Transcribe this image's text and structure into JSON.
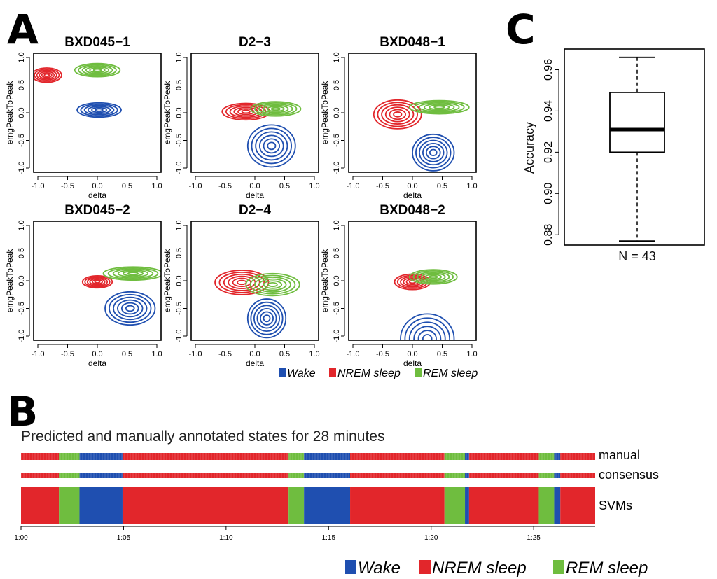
{
  "panel_labels": {
    "a": "A",
    "b": "B",
    "c": "C"
  },
  "colors": {
    "wake": "#1f4fb0",
    "nrem": "#e2262b",
    "rem": "#6fbd3f"
  },
  "chart_data": [
    {
      "type": "scatter",
      "panel": "A",
      "subtitle_note": "2D density contour plots of emgPeakToPeak vs delta",
      "xlabel": "delta",
      "ylabel": "emgPeakToPeak",
      "xlim": [
        -1.0,
        1.0
      ],
      "ylim": [
        -1.0,
        1.0
      ],
      "xticks": [
        "-1.0",
        "-0.5",
        "0.0",
        "0.5",
        "1.0"
      ],
      "yticks": [
        "-1.0",
        "-0.5",
        "0.0",
        "0.5",
        "1.0"
      ],
      "legend": [
        "Wake",
        "NREM sleep",
        "REM sleep"
      ],
      "plots": [
        {
          "title": "BXD045−1",
          "clusters": [
            {
              "state": "nrem",
              "cx": -0.85,
              "cy": 0.68,
              "rx": 0.25,
              "ry": 0.13
            },
            {
              "state": "rem",
              "cx": 0.0,
              "cy": 0.77,
              "rx": 0.38,
              "ry": 0.12
            },
            {
              "state": "wake",
              "cx": 0.03,
              "cy": 0.05,
              "rx": 0.37,
              "ry": 0.13
            }
          ]
        },
        {
          "title": "D2−3",
          "clusters": [
            {
              "state": "nrem",
              "cx": -0.15,
              "cy": 0.02,
              "rx": 0.4,
              "ry": 0.15
            },
            {
              "state": "rem",
              "cx": 0.35,
              "cy": 0.07,
              "rx": 0.42,
              "ry": 0.13
            },
            {
              "state": "wake",
              "cx": 0.28,
              "cy": -0.6,
              "rx": 0.4,
              "ry": 0.38
            }
          ]
        },
        {
          "title": "BXD048−1",
          "clusters": [
            {
              "state": "nrem",
              "cx": -0.25,
              "cy": -0.03,
              "rx": 0.4,
              "ry": 0.26
            },
            {
              "state": "rem",
              "cx": 0.45,
              "cy": 0.1,
              "rx": 0.5,
              "ry": 0.12
            },
            {
              "state": "wake",
              "cx": 0.35,
              "cy": -0.72,
              "rx": 0.35,
              "ry": 0.33
            }
          ]
        },
        {
          "title": "BXD045−2",
          "clusters": [
            {
              "state": "nrem",
              "cx": 0.0,
              "cy": -0.02,
              "rx": 0.25,
              "ry": 0.11
            },
            {
              "state": "rem",
              "cx": 0.6,
              "cy": 0.13,
              "rx": 0.5,
              "ry": 0.12
            },
            {
              "state": "wake",
              "cx": 0.55,
              "cy": -0.5,
              "rx": 0.42,
              "ry": 0.3
            }
          ]
        },
        {
          "title": "D2−4",
          "clusters": [
            {
              "state": "nrem",
              "cx": -0.22,
              "cy": -0.03,
              "rx": 0.45,
              "ry": 0.22
            },
            {
              "state": "rem",
              "cx": 0.3,
              "cy": -0.07,
              "rx": 0.45,
              "ry": 0.2
            },
            {
              "state": "wake",
              "cx": 0.2,
              "cy": -0.68,
              "rx": 0.32,
              "ry": 0.35
            }
          ]
        },
        {
          "title": "BXD048−2",
          "clusters": [
            {
              "state": "nrem",
              "cx": 0.0,
              "cy": -0.02,
              "rx": 0.3,
              "ry": 0.14
            },
            {
              "state": "rem",
              "cx": 0.35,
              "cy": 0.07,
              "rx": 0.4,
              "ry": 0.13
            },
            {
              "state": "wake",
              "cx": 0.25,
              "cy": -1.05,
              "rx": 0.45,
              "ry": 0.45
            }
          ]
        }
      ]
    },
    {
      "type": "heatmap",
      "panel": "B",
      "title": "Predicted and manually annotated states for 28 minutes",
      "rows": [
        "manual",
        "consensus",
        "SVMs"
      ],
      "legend": [
        "Wake",
        "NREM sleep",
        "REM sleep"
      ],
      "xticks": [
        "1:00",
        "1:05",
        "1:10",
        "1:15",
        "1:20",
        "1:25"
      ],
      "xrange_min": [
        0,
        28
      ],
      "tick_minutes": [
        0,
        5,
        10,
        15,
        20,
        25
      ],
      "segments_min": [
        {
          "state": "nrem",
          "start": 0.0,
          "end": 1.85
        },
        {
          "state": "rem",
          "start": 1.85,
          "end": 2.85
        },
        {
          "state": "wake",
          "start": 2.85,
          "end": 4.95
        },
        {
          "state": "nrem",
          "start": 4.95,
          "end": 13.05
        },
        {
          "state": "rem",
          "start": 13.05,
          "end": 13.8
        },
        {
          "state": "wake",
          "start": 13.8,
          "end": 16.05
        },
        {
          "state": "nrem",
          "start": 16.05,
          "end": 20.65
        },
        {
          "state": "rem",
          "start": 20.65,
          "end": 21.65
        },
        {
          "state": "wake",
          "start": 21.65,
          "end": 21.85
        },
        {
          "state": "nrem",
          "start": 21.85,
          "end": 25.25
        },
        {
          "state": "rem",
          "start": 25.25,
          "end": 26.0
        },
        {
          "state": "wake",
          "start": 26.0,
          "end": 26.3
        },
        {
          "state": "nrem",
          "start": 26.3,
          "end": 28.0
        }
      ]
    },
    {
      "type": "box",
      "panel": "C",
      "ylabel": "Accuracy",
      "xlabel": "N = 43",
      "ylim": [
        0.875,
        0.97
      ],
      "yticks": [
        "0.88",
        "0.90",
        "0.92",
        "0.94",
        "0.96"
      ],
      "tick_values": [
        0.88,
        0.9,
        0.92,
        0.94,
        0.96
      ],
      "stats": {
        "min": 0.877,
        "q1": 0.92,
        "median": 0.931,
        "q3": 0.949,
        "max": 0.966
      }
    }
  ]
}
